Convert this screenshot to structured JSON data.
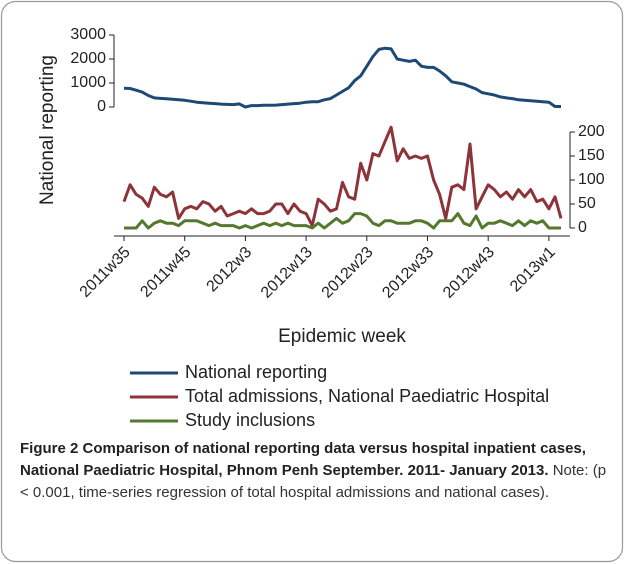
{
  "chart_data": {
    "type": "line",
    "y_label": "National reporting",
    "x_label": "Epidemic week",
    "categories": [
      "2011w35",
      null,
      null,
      null,
      null,
      null,
      null,
      null,
      null,
      null,
      "2011w45",
      null,
      null,
      null,
      null,
      null,
      null,
      null,
      null,
      null,
      "2012w3",
      null,
      null,
      null,
      null,
      null,
      null,
      null,
      null,
      null,
      "2012w13",
      null,
      null,
      null,
      null,
      null,
      null,
      null,
      null,
      null,
      "2012w23",
      null,
      null,
      null,
      null,
      null,
      null,
      null,
      null,
      null,
      "2012w33",
      null,
      null,
      null,
      null,
      null,
      null,
      null,
      null,
      null,
      "2012w43",
      null,
      null,
      null,
      null,
      null,
      null,
      null,
      null,
      null,
      "2013w1",
      null,
      null
    ],
    "ylim": [
      0,
      3000
    ],
    "yticks": [
      0,
      1000,
      2000,
      3000
    ],
    "y2lim": [
      0,
      200
    ],
    "y2ticks": [
      0,
      50,
      100,
      150,
      200
    ],
    "series": [
      {
        "name": "National reporting",
        "color": "#1d4a74",
        "values": [
          780,
          770,
          700,
          620,
          480,
          380,
          360,
          340,
          320,
          300,
          280,
          240,
          200,
          180,
          160,
          140,
          120,
          110,
          100,
          130,
          0,
          60,
          60,
          70,
          70,
          80,
          100,
          120,
          140,
          160,
          200,
          220,
          220,
          300,
          350,
          500,
          650,
          800,
          1100,
          1300,
          1700,
          2100,
          2400,
          2450,
          2420,
          2000,
          1950,
          1900,
          1950,
          1700,
          1650,
          1650,
          1500,
          1300,
          1050,
          1000,
          950,
          850,
          750,
          600,
          550,
          500,
          420,
          380,
          350,
          300,
          280,
          260,
          240,
          220,
          200,
          20,
          20
        ]
      },
      {
        "name": "Total admissions, National Paediatric Hospital",
        "color": "#8e3339",
        "axis": "y2",
        "values": [
          55,
          90,
          70,
          62,
          45,
          85,
          70,
          65,
          75,
          20,
          40,
          45,
          40,
          55,
          50,
          35,
          45,
          25,
          30,
          35,
          30,
          40,
          30,
          30,
          35,
          50,
          50,
          30,
          50,
          35,
          30,
          5,
          60,
          50,
          35,
          40,
          95,
          65,
          60,
          135,
          100,
          155,
          150,
          180,
          210,
          140,
          165,
          145,
          150,
          145,
          150,
          100,
          70,
          20,
          85,
          90,
          80,
          175,
          40,
          65,
          90,
          80,
          65,
          75,
          60,
          80,
          65,
          80,
          55,
          60,
          40,
          65,
          20
        ]
      },
      {
        "name": "Study inclusions",
        "color": "#55782f",
        "axis": "y2",
        "values": [
          0,
          0,
          0,
          15,
          0,
          10,
          15,
          10,
          10,
          5,
          15,
          15,
          15,
          10,
          5,
          10,
          5,
          5,
          5,
          0,
          5,
          0,
          5,
          10,
          5,
          10,
          5,
          10,
          5,
          5,
          5,
          0,
          10,
          0,
          10,
          20,
          10,
          15,
          30,
          30,
          25,
          10,
          5,
          15,
          15,
          10,
          10,
          10,
          15,
          15,
          10,
          0,
          15,
          15,
          15,
          30,
          10,
          5,
          25,
          0,
          10,
          10,
          15,
          10,
          5,
          15,
          5,
          15,
          10,
          15,
          0,
          0,
          0
        ]
      }
    ]
  },
  "caption": {
    "title": "Figure 2 Comparison of national reporting data versus hospital inpatient cases, National Paediatric Hospital, Phnom Penh September. 2011- January 2013.",
    "note": "Note: (p < 0.001, time-series regression of total hospital admissions and national cases)."
  }
}
